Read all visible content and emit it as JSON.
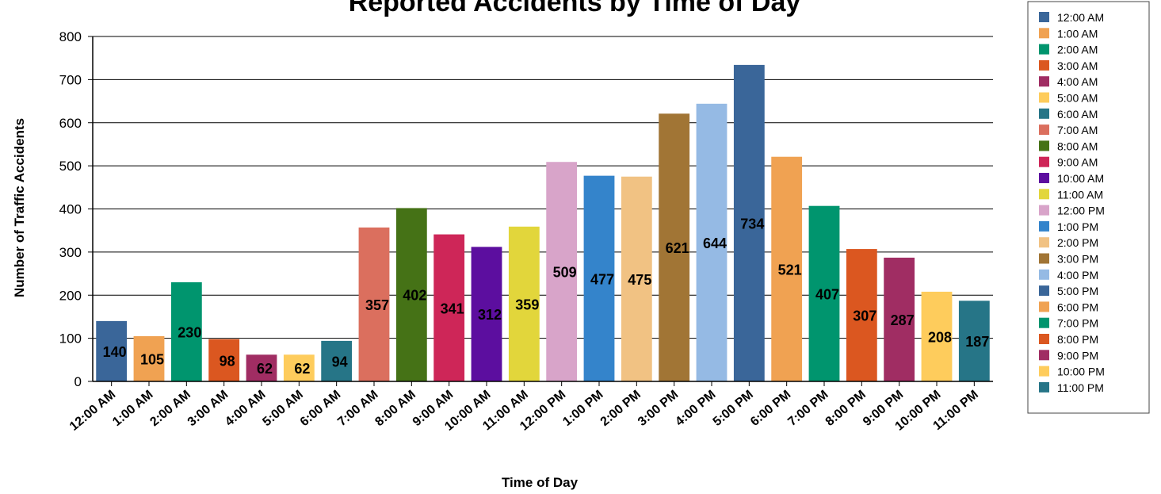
{
  "chart_data": {
    "type": "bar",
    "title": "Reported Accidents by Time of Day",
    "xlabel": "Time of Day",
    "ylabel": "Number of Traffic Accidents",
    "ylim": [
      0,
      800
    ],
    "yticks": [
      0,
      100,
      200,
      300,
      400,
      500,
      600,
      700,
      800
    ],
    "grid": true,
    "legend_position": "right",
    "categories": [
      "12:00 AM",
      "1:00 AM",
      "2:00 AM",
      "3:00 AM",
      "4:00 AM",
      "5:00 AM",
      "6:00 AM",
      "7:00 AM",
      "8:00 AM",
      "9:00 AM",
      "10:00 AM",
      "11:00 AM",
      "12:00 PM",
      "1:00 PM",
      "2:00 PM",
      "3:00 PM",
      "4:00 PM",
      "5:00 PM",
      "6:00 PM",
      "7:00 PM",
      "8:00 PM",
      "9:00 PM",
      "10:00 PM",
      "11:00 PM"
    ],
    "values": [
      140,
      105,
      230,
      98,
      62,
      62,
      94,
      357,
      402,
      341,
      312,
      359,
      509,
      477,
      475,
      621,
      644,
      734,
      521,
      407,
      307,
      287,
      208,
      187
    ],
    "colors": [
      "#3a6699",
      "#f0a252",
      "#00956e",
      "#db5720",
      "#a02d63",
      "#fecc5c",
      "#267587",
      "#db6f5e",
      "#457216",
      "#ce2658",
      "#5c0e9f",
      "#e2d63b",
      "#d8a4c9",
      "#3484cb",
      "#f1c283",
      "#a17535",
      "#95bae4",
      "#3a6699",
      "#f0a252",
      "#00956e",
      "#db5720",
      "#a02d63",
      "#fecc5c",
      "#267587"
    ]
  }
}
